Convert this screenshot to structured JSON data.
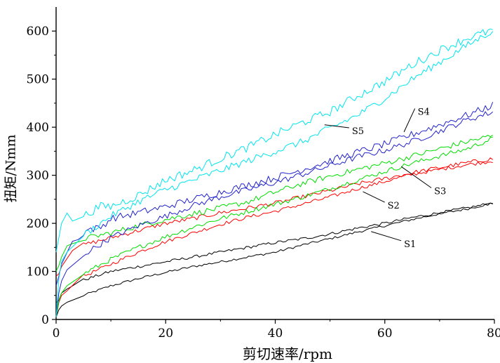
{
  "chart_data": {
    "type": "line",
    "title": "",
    "xlabel": "剪切速率/rpm",
    "ylabel": "扭矩/Nmm",
    "xlim": [
      0,
      80
    ],
    "ylim": [
      0,
      650
    ],
    "x_ticks": [
      "0",
      "20",
      "40",
      "60",
      "80"
    ],
    "y_ticks": [
      "0",
      "100",
      "200",
      "300",
      "400",
      "500",
      "600"
    ],
    "grid": false,
    "legend": "none",
    "series": [
      {
        "name": "S1",
        "color": "#000000",
        "up": [
          [
            0,
            5
          ],
          [
            0.5,
            20
          ],
          [
            1,
            28
          ],
          [
            2,
            35
          ],
          [
            5,
            50
          ],
          [
            10,
            70
          ],
          [
            15,
            85
          ],
          [
            20,
            98
          ],
          [
            25,
            110
          ],
          [
            30,
            120
          ],
          [
            35,
            130
          ],
          [
            40,
            140
          ],
          [
            45,
            155
          ],
          [
            50,
            168
          ],
          [
            55,
            182
          ],
          [
            60,
            195
          ],
          [
            65,
            208
          ],
          [
            70,
            220
          ],
          [
            75,
            230
          ],
          [
            80,
            243
          ]
        ],
        "down": [
          [
            80,
            243
          ],
          [
            75,
            232
          ],
          [
            70,
            222
          ],
          [
            65,
            212
          ],
          [
            60,
            200
          ],
          [
            55,
            190
          ],
          [
            50,
            178
          ],
          [
            45,
            168
          ],
          [
            40,
            160
          ],
          [
            35,
            150
          ],
          [
            30,
            140
          ],
          [
            25,
            130
          ],
          [
            20,
            120
          ],
          [
            15,
            110
          ],
          [
            10,
            100
          ],
          [
            5,
            82
          ],
          [
            3,
            70
          ],
          [
            2,
            65
          ],
          [
            1,
            55
          ],
          [
            0.5,
            40
          ],
          [
            0,
            35
          ]
        ]
      },
      {
        "name": "S2",
        "color": "#ff0000",
        "up": [
          [
            0,
            5
          ],
          [
            0.5,
            35
          ],
          [
            1,
            50
          ],
          [
            2,
            62
          ],
          [
            5,
            90
          ],
          [
            10,
            115
          ],
          [
            15,
            140
          ],
          [
            20,
            162
          ],
          [
            25,
            180
          ],
          [
            30,
            198
          ],
          [
            35,
            213
          ],
          [
            40,
            225
          ],
          [
            45,
            240
          ],
          [
            50,
            255
          ],
          [
            55,
            272
          ],
          [
            60,
            287
          ],
          [
            65,
            302
          ],
          [
            70,
            312
          ],
          [
            75,
            322
          ],
          [
            80,
            330
          ]
        ],
        "down": [
          [
            80,
            335
          ],
          [
            75,
            326
          ],
          [
            70,
            316
          ],
          [
            65,
            305
          ],
          [
            60,
            293
          ],
          [
            55,
            282
          ],
          [
            50,
            268
          ],
          [
            45,
            255
          ],
          [
            40,
            242
          ],
          [
            35,
            232
          ],
          [
            30,
            222
          ],
          [
            25,
            210
          ],
          [
            20,
            200
          ],
          [
            15,
            185
          ],
          [
            10,
            170
          ],
          [
            5,
            155
          ],
          [
            3,
            145
          ],
          [
            2,
            130
          ],
          [
            1,
            110
          ],
          [
            0.5,
            95
          ],
          [
            0,
            90
          ]
        ]
      },
      {
        "name": "S3",
        "color": "#00dd00",
        "up": [
          [
            0,
            5
          ],
          [
            0.5,
            38
          ],
          [
            1,
            55
          ],
          [
            2,
            68
          ],
          [
            5,
            95
          ],
          [
            10,
            125
          ],
          [
            15,
            150
          ],
          [
            20,
            172
          ],
          [
            25,
            192
          ],
          [
            30,
            210
          ],
          [
            35,
            225
          ],
          [
            40,
            240
          ],
          [
            45,
            255
          ],
          [
            50,
            272
          ],
          [
            55,
            290
          ],
          [
            60,
            308
          ],
          [
            65,
            325
          ],
          [
            70,
            340
          ],
          [
            75,
            355
          ],
          [
            80,
            378
          ]
        ],
        "down": [
          [
            80,
            383
          ],
          [
            75,
            370
          ],
          [
            70,
            355
          ],
          [
            65,
            340
          ],
          [
            60,
            325
          ],
          [
            55,
            312
          ],
          [
            50,
            298
          ],
          [
            45,
            283
          ],
          [
            40,
            265
          ],
          [
            35,
            245
          ],
          [
            30,
            232
          ],
          [
            25,
            220
          ],
          [
            20,
            208
          ],
          [
            15,
            195
          ],
          [
            10,
            180
          ],
          [
            5,
            168
          ],
          [
            3,
            160
          ],
          [
            2,
            148
          ],
          [
            1,
            130
          ],
          [
            0.5,
            112
          ],
          [
            0,
            100
          ]
        ]
      },
      {
        "name": "S4",
        "color": "#2222cc",
        "up": [
          [
            0,
            5
          ],
          [
            0.5,
            55
          ],
          [
            1,
            80
          ],
          [
            2,
            100
          ],
          [
            5,
            135
          ],
          [
            10,
            170
          ],
          [
            15,
            195
          ],
          [
            20,
            215
          ],
          [
            25,
            237
          ],
          [
            30,
            255
          ],
          [
            35,
            270
          ],
          [
            40,
            285
          ],
          [
            45,
            302
          ],
          [
            50,
            320
          ],
          [
            55,
            338
          ],
          [
            60,
            352
          ],
          [
            65,
            370
          ],
          [
            70,
            392
          ],
          [
            75,
            415
          ],
          [
            80,
            433
          ]
        ],
        "down": [
          [
            80,
            447
          ],
          [
            75,
            425
          ],
          [
            70,
            405
          ],
          [
            65,
            385
          ],
          [
            60,
            365
          ],
          [
            55,
            348
          ],
          [
            50,
            330
          ],
          [
            45,
            312
          ],
          [
            40,
            295
          ],
          [
            35,
            280
          ],
          [
            30,
            265
          ],
          [
            25,
            250
          ],
          [
            20,
            235
          ],
          [
            15,
            222
          ],
          [
            10,
            210
          ],
          [
            8,
            190
          ],
          [
            6,
            188
          ],
          [
            5,
            180
          ],
          [
            4,
            172
          ],
          [
            3,
            160
          ],
          [
            2,
            140
          ],
          [
            1,
            115
          ],
          [
            0.5,
            90
          ],
          [
            0,
            70
          ]
        ]
      },
      {
        "name": "S5",
        "color": "#00e5ee",
        "up": [
          [
            0,
            5
          ],
          [
            0.5,
            85
          ],
          [
            1,
            120
          ],
          [
            2,
            145
          ],
          [
            5,
            175
          ],
          [
            10,
            215
          ],
          [
            15,
            245
          ],
          [
            20,
            270
          ],
          [
            25,
            290
          ],
          [
            30,
            310
          ],
          [
            35,
            330
          ],
          [
            40,
            350
          ],
          [
            45,
            370
          ],
          [
            50,
            398
          ],
          [
            55,
            425
          ],
          [
            60,
            460
          ],
          [
            65,
            500
          ],
          [
            70,
            535
          ],
          [
            75,
            570
          ],
          [
            80,
            603
          ]
        ],
        "down": [
          [
            80,
            603
          ],
          [
            75,
            585
          ],
          [
            70,
            560
          ],
          [
            65,
            530
          ],
          [
            60,
            495
          ],
          [
            55,
            465
          ],
          [
            50,
            432
          ],
          [
            45,
            410
          ],
          [
            40,
            385
          ],
          [
            35,
            358
          ],
          [
            30,
            335
          ],
          [
            25,
            310
          ],
          [
            20,
            290
          ],
          [
            15,
            258
          ],
          [
            10,
            235
          ],
          [
            8,
            235
          ],
          [
            5,
            215
          ],
          [
            3,
            210
          ],
          [
            2,
            215
          ],
          [
            1,
            200
          ],
          [
            0.5,
            170
          ],
          [
            0,
            140
          ]
        ]
      }
    ],
    "annotations": [
      {
        "text": "S1",
        "x": 63.5,
        "y": 158,
        "tip_x": 57.5,
        "tip_y": 183
      },
      {
        "text": "S2",
        "x": 60.5,
        "y": 238,
        "tip_x": 56,
        "tip_y": 266
      },
      {
        "text": "S3",
        "x": 69,
        "y": 268,
        "tip_x": 63,
        "tip_y": 318
      },
      {
        "text": "S4",
        "x": 66,
        "y": 433,
        "tip_x": 63.5,
        "tip_y": 390
      },
      {
        "text": "S5",
        "x": 54,
        "y": 393,
        "tip_x": 49,
        "tip_y": 405
      }
    ]
  }
}
